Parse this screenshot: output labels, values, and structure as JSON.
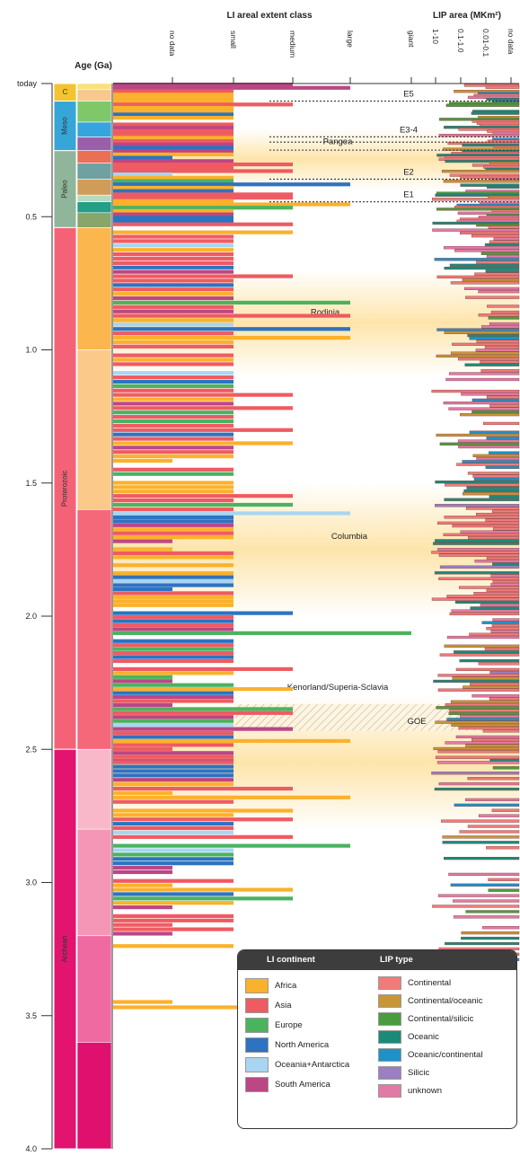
{
  "header": {
    "age_title": "Age (Ga)",
    "li_title": "LI areal extent class",
    "lip_title": "LIP area (MKm²)"
  },
  "chart_data": {
    "type": "bar",
    "y_axis": {
      "label": "Age (Ga)",
      "range": [
        0,
        4.0
      ],
      "ticks": [
        "today",
        "0.5",
        "1.0",
        "1.5",
        "2.0",
        "2.5",
        "3.0",
        "3.5",
        "4.0"
      ]
    },
    "eons": [
      {
        "name": "C",
        "start": 0,
        "end": 0.066,
        "color": "#f5c330"
      },
      {
        "name": "Meso",
        "start": 0.066,
        "end": 0.252,
        "color": "#36a5d8"
      },
      {
        "name": "Paleo",
        "start": 0.252,
        "end": 0.541,
        "color": "#8fb59a"
      },
      {
        "name": "Proterozoic",
        "start": 0.541,
        "end": 2.5,
        "color": "#f46277"
      },
      {
        "name": "Archean",
        "start": 2.5,
        "end": 4.0,
        "color": "#e2146f"
      }
    ],
    "periods": [
      {
        "start": 0,
        "end": 0.023,
        "color": "#f8e27a"
      },
      {
        "start": 0.023,
        "end": 0.066,
        "color": "#f8c88c"
      },
      {
        "start": 0.066,
        "end": 0.145,
        "color": "#7ec86a"
      },
      {
        "start": 0.145,
        "end": 0.201,
        "color": "#37a5dd"
      },
      {
        "start": 0.201,
        "end": 0.252,
        "color": "#9a5fab"
      },
      {
        "start": 0.252,
        "end": 0.299,
        "color": "#ea7055"
      },
      {
        "start": 0.299,
        "end": 0.359,
        "color": "#6fa1a3"
      },
      {
        "start": 0.359,
        "end": 0.419,
        "color": "#cf9c5a"
      },
      {
        "start": 0.419,
        "end": 0.444,
        "color": "#b4dac1"
      },
      {
        "start": 0.444,
        "end": 0.485,
        "color": "#239e87"
      },
      {
        "start": 0.485,
        "end": 0.541,
        "color": "#89a66a"
      },
      {
        "start": 0.541,
        "end": 1.0,
        "color": "#fbb64e"
      },
      {
        "start": 1.0,
        "end": 1.6,
        "color": "#fbc98a"
      },
      {
        "start": 1.6,
        "end": 2.5,
        "color": "#f56879"
      },
      {
        "start": 2.5,
        "end": 2.8,
        "color": "#f9b8c9"
      },
      {
        "start": 2.8,
        "end": 3.2,
        "color": "#f596b6"
      },
      {
        "start": 3.2,
        "end": 3.6,
        "color": "#ee6aa0"
      },
      {
        "start": 3.6,
        "end": 4.0,
        "color": "#e0106e"
      }
    ],
    "li_categories": [
      "no data",
      "small",
      "medium",
      "large",
      "giant"
    ],
    "lip_categories": [
      "1-10",
      "0.1-1.0",
      "0.01-0.1",
      "no data"
    ],
    "supercontinents": [
      {
        "name": "Pangea",
        "start": 0.17,
        "end": 0.4
      },
      {
        "name": "Rodinia",
        "start": 0.7,
        "end": 1.1
      },
      {
        "name": "Columbia",
        "start": 1.5,
        "end": 2.0
      },
      {
        "name": "Kenorland/Superia-Sclavia",
        "start": 2.3,
        "end": 2.8
      }
    ],
    "events": [
      {
        "name": "E5",
        "age": 0.066
      },
      {
        "name": "E3-4",
        "age": 0.2
      },
      {
        "name": "E3-4",
        "age": 0.22
      },
      {
        "name": "E3-4",
        "age": 0.25
      },
      {
        "name": "E2",
        "age": 0.359
      },
      {
        "name": "E1",
        "age": 0.444
      }
    ],
    "goe": {
      "name": "GOE",
      "start": 2.33,
      "end": 2.43
    },
    "li_series": [
      {
        "name": "Africa",
        "color": "#fbb12b"
      },
      {
        "name": "Asia",
        "color": "#ef5b62"
      },
      {
        "name": "Europe",
        "color": "#4bb35f"
      },
      {
        "name": "North America",
        "color": "#2d73c1"
      },
      {
        "name": "Oceania+Antarctica",
        "color": "#a8d6f2"
      },
      {
        "name": "South America",
        "color": "#bb4785"
      }
    ],
    "lip_series": [
      {
        "name": "Continental",
        "color": "#f07b79"
      },
      {
        "name": "Continental/oceanic",
        "color": "#c99538"
      },
      {
        "name": "Continental/silicic",
        "color": "#4a9c3e"
      },
      {
        "name": "Oceanic",
        "color": "#1c8a7a"
      },
      {
        "name": "Oceanic/continental",
        "color": "#1f91c9"
      },
      {
        "name": "Silicic",
        "color": "#9b7fc0"
      },
      {
        "name": "unknown",
        "color": "#e27aa6"
      }
    ]
  },
  "legend": {
    "li_title": "LI continent",
    "lip_title": "LIP type",
    "li_items": [
      "Africa",
      "Asia",
      "Europe",
      "North America",
      "Oceania+Antarctica",
      "South America"
    ],
    "lip_items": [
      "Continental",
      "Continental/oceanic",
      "Continental/silicic",
      "Oceanic",
      "Oceanic/continental",
      "Silicic",
      "unknown"
    ]
  }
}
